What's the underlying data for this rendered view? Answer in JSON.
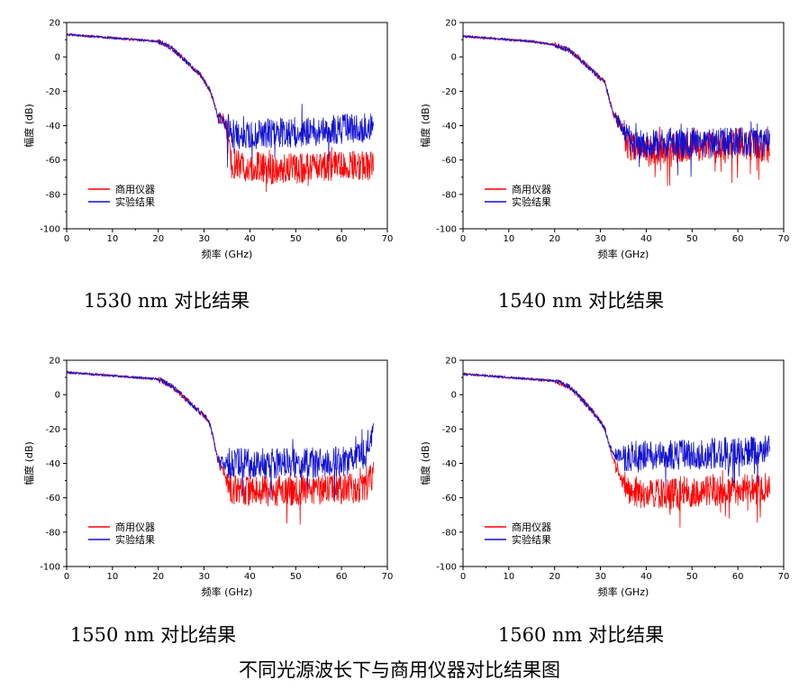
{
  "figure_title": "不同光源波长下与商用仪器对比结果图",
  "colors": {
    "instrument": "#ff0000",
    "experiment": "#1010d0",
    "instrument_dark": "#b02020"
  },
  "chart_data": [
    {
      "type": "line",
      "caption": "1530 nm 对比结果",
      "xlabel": "频率 (GHz)",
      "ylabel": "幅度 (dB)",
      "xlim": [
        0,
        70
      ],
      "ylim": [
        -100,
        20
      ],
      "xticks": [
        "0",
        "10",
        "20",
        "30",
        "40",
        "50",
        "60",
        "70"
      ],
      "yticks": [
        "20",
        "0",
        "-20",
        "-40",
        "-60",
        "-80",
        "-100"
      ],
      "legend_position": "bottom-left",
      "series": [
        {
          "name": "商用仪器",
          "color": "#ff0000",
          "x": [
            0,
            5,
            10,
            15,
            20,
            23,
            25,
            27,
            29,
            31,
            32,
            33,
            34,
            35,
            36,
            40,
            45,
            50,
            55,
            60,
            65,
            67
          ],
          "y": [
            13,
            12,
            11,
            10,
            9,
            5,
            0,
            -5,
            -10,
            -18,
            -25,
            -35,
            -35,
            -45,
            -62,
            -64,
            -65,
            -65,
            -64,
            -63,
            -63,
            -63
          ]
        },
        {
          "name": "实验结果",
          "color": "#1010d0",
          "x": [
            0,
            5,
            10,
            15,
            20,
            23,
            25,
            27,
            29,
            31,
            32,
            33,
            34,
            35,
            36,
            40,
            45,
            50,
            55,
            60,
            65,
            67
          ],
          "y": [
            13,
            12,
            11,
            10,
            9,
            5,
            0,
            -5,
            -10,
            -18,
            -25,
            -35,
            -35,
            -40,
            -45,
            -45,
            -44,
            -44,
            -43,
            -42,
            -41,
            -38
          ]
        }
      ]
    },
    {
      "type": "line",
      "caption": "1540 nm 对比结果",
      "xlabel": "频率 (GHz)",
      "ylabel": "幅度 (dB)",
      "xlim": [
        0,
        70
      ],
      "ylim": [
        -100,
        20
      ],
      "xticks": [
        "0",
        "10",
        "20",
        "30",
        "40",
        "50",
        "60",
        "70"
      ],
      "yticks": [
        "20",
        "0",
        "-20",
        "-40",
        "-60",
        "-80",
        "-100"
      ],
      "legend_position": "bottom-left",
      "series": [
        {
          "name": "商用仪器",
          "color": "#ff0000",
          "x": [
            0,
            5,
            10,
            15,
            20,
            23,
            25,
            27,
            29,
            31,
            32,
            33,
            34,
            35,
            36,
            40,
            45,
            50,
            55,
            60,
            65,
            67
          ],
          "y": [
            12,
            11,
            10,
            9,
            7,
            4,
            0,
            -5,
            -10,
            -15,
            -25,
            -35,
            -38,
            -42,
            -52,
            -55,
            -53,
            -52,
            -52,
            -50,
            -52,
            -52
          ]
        },
        {
          "name": "实验结果",
          "color": "#1010d0",
          "x": [
            0,
            5,
            10,
            15,
            20,
            23,
            25,
            27,
            29,
            31,
            32,
            33,
            34,
            35,
            36,
            40,
            45,
            50,
            55,
            60,
            65,
            67
          ],
          "y": [
            12,
            11,
            10,
            9,
            7,
            4,
            0,
            -5,
            -10,
            -15,
            -25,
            -35,
            -38,
            -42,
            -50,
            -52,
            -50,
            -50,
            -50,
            -50,
            -50,
            -48
          ]
        }
      ]
    },
    {
      "type": "line",
      "caption": "1550 nm 对比结果",
      "xlabel": "频率 (GHz)",
      "ylabel": "幅度 (dB)",
      "xlim": [
        0,
        70
      ],
      "ylim": [
        -100,
        20
      ],
      "xticks": [
        "0",
        "10",
        "20",
        "30",
        "40",
        "50",
        "60",
        "70"
      ],
      "yticks": [
        "20",
        "0",
        "-20",
        "-40",
        "-60",
        "-80",
        "-100"
      ],
      "legend_position": "bottom-left",
      "series": [
        {
          "name": "商用仪器",
          "color": "#ff0000",
          "x": [
            0,
            5,
            10,
            15,
            20,
            23,
            25,
            27,
            29,
            31,
            32,
            33,
            34,
            35,
            36,
            40,
            45,
            50,
            55,
            60,
            65,
            67
          ],
          "y": [
            13,
            12,
            11,
            10,
            9,
            5,
            0,
            -5,
            -10,
            -15,
            -25,
            -38,
            -45,
            -50,
            -55,
            -56,
            -56,
            -56,
            -55,
            -55,
            -55,
            -45
          ]
        },
        {
          "name": "实验结果",
          "color": "#1010d0",
          "x": [
            0,
            5,
            10,
            15,
            20,
            23,
            25,
            27,
            29,
            31,
            32,
            33,
            34,
            35,
            36,
            40,
            45,
            50,
            55,
            60,
            65,
            67
          ],
          "y": [
            13,
            12,
            11,
            10,
            9,
            5,
            0,
            -5,
            -10,
            -15,
            -25,
            -38,
            -40,
            -40,
            -40,
            -40,
            -40,
            -40,
            -40,
            -39,
            -35,
            -20
          ]
        }
      ]
    },
    {
      "type": "line",
      "caption": "1560 nm 对比结果",
      "xlabel": "频率 (GHz)",
      "ylabel": "幅度 (dB)",
      "xlim": [
        0,
        70
      ],
      "ylim": [
        -100,
        20
      ],
      "xticks": [
        "0",
        "10",
        "20",
        "30",
        "40",
        "50",
        "60",
        "70"
      ],
      "yticks": [
        "20",
        "0",
        "-20",
        "-40",
        "-60",
        "-80",
        "-100"
      ],
      "legend_position": "bottom-left",
      "series": [
        {
          "name": "商用仪器",
          "color": "#ff0000",
          "x": [
            0,
            5,
            10,
            15,
            20,
            23,
            25,
            27,
            29,
            31,
            32,
            33,
            34,
            35,
            36,
            40,
            45,
            50,
            55,
            60,
            65,
            67
          ],
          "y": [
            12,
            11,
            10,
            9,
            8,
            5,
            0,
            -6,
            -12,
            -20,
            -30,
            -40,
            -45,
            -52,
            -55,
            -58,
            -58,
            -57,
            -56,
            -55,
            -55,
            -52
          ]
        },
        {
          "name": "实验结果",
          "color": "#1010d0",
          "x": [
            0,
            5,
            10,
            15,
            20,
            23,
            25,
            27,
            29,
            31,
            32,
            33,
            34,
            35,
            36,
            40,
            45,
            50,
            55,
            60,
            65,
            67
          ],
          "y": [
            12,
            11,
            10,
            9,
            8,
            5,
            0,
            -6,
            -12,
            -20,
            -30,
            -35,
            -35,
            -36,
            -36,
            -35,
            -35,
            -35,
            -34,
            -33,
            -32,
            -28
          ]
        }
      ]
    }
  ]
}
